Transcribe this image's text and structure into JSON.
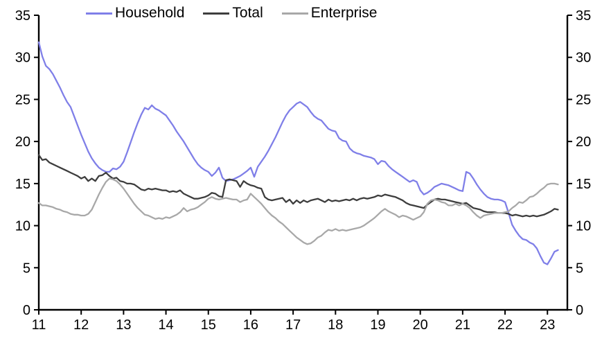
{
  "chart_data": {
    "type": "line",
    "legend_position": "top",
    "x_start_year": 2011,
    "x_step_months": 1,
    "xlim_years": [
      2011,
      2023.47
    ],
    "ylim": [
      0,
      35
    ],
    "y_ticks_left": [
      0,
      5,
      10,
      15,
      20,
      25,
      30,
      35
    ],
    "y_ticks_right": [
      0,
      5,
      10,
      15,
      20,
      25,
      30,
      35
    ],
    "x_ticks": [
      {
        "year": 2011,
        "label": "11"
      },
      {
        "year": 2012,
        "label": "12"
      },
      {
        "year": 2013,
        "label": "13"
      },
      {
        "year": 2014,
        "label": "14"
      },
      {
        "year": 2015,
        "label": "15"
      },
      {
        "year": 2016,
        "label": "16"
      },
      {
        "year": 2017,
        "label": "17"
      },
      {
        "year": 2018,
        "label": "18"
      },
      {
        "year": 2019,
        "label": "19"
      },
      {
        "year": 2020,
        "label": "20"
      },
      {
        "year": 2021,
        "label": "21"
      },
      {
        "year": 2022,
        "label": "22"
      },
      {
        "year": 2023,
        "label": "23"
      }
    ],
    "axis_color": "#000000",
    "grid": false,
    "series": [
      {
        "name": "Household",
        "color": "#7f7fe8",
        "values": [
          31.8,
          30.1,
          29.0,
          28.6,
          28.0,
          27.2,
          26.4,
          25.5,
          24.7,
          24.1,
          23.0,
          21.9,
          20.8,
          19.8,
          18.8,
          18.0,
          17.4,
          16.9,
          16.6,
          16.4,
          16.4,
          16.8,
          16.7,
          17.0,
          17.6,
          18.7,
          19.9,
          21.1,
          22.2,
          23.2,
          24.0,
          23.8,
          24.3,
          23.9,
          23.7,
          23.4,
          23.1,
          22.5,
          21.9,
          21.2,
          20.6,
          20.0,
          19.3,
          18.6,
          17.9,
          17.3,
          16.9,
          16.6,
          16.4,
          15.9,
          16.3,
          16.9,
          15.7,
          15.3,
          15.4,
          15.5,
          15.7,
          15.9,
          16.2,
          16.5,
          16.9,
          15.8,
          17.0,
          17.6,
          18.2,
          18.9,
          19.7,
          20.5,
          21.4,
          22.3,
          23.1,
          23.7,
          24.1,
          24.5,
          24.7,
          24.4,
          24.1,
          23.5,
          23.0,
          22.7,
          22.5,
          22.0,
          21.5,
          21.3,
          21.2,
          20.4,
          20.1,
          20.0,
          19.2,
          18.8,
          18.6,
          18.5,
          18.3,
          18.2,
          18.1,
          17.9,
          17.3,
          17.7,
          17.6,
          17.1,
          16.7,
          16.4,
          16.1,
          15.8,
          15.5,
          15.2,
          15.4,
          15.2,
          14.2,
          13.7,
          13.9,
          14.2,
          14.6,
          14.8,
          15.0,
          14.9,
          14.8,
          14.6,
          14.4,
          14.2,
          14.1,
          16.4,
          16.2,
          15.6,
          14.9,
          14.3,
          13.8,
          13.4,
          13.2,
          13.1,
          13.1,
          13.0,
          12.8,
          11.5,
          10.1,
          9.4,
          8.8,
          8.4,
          8.3,
          8.0,
          7.8,
          7.3,
          6.4,
          5.6,
          5.4,
          6.1,
          6.9,
          7.1
        ]
      },
      {
        "name": "Total",
        "color": "#3d3d3d",
        "values": [
          18.4,
          17.8,
          17.9,
          17.5,
          17.3,
          17.1,
          16.9,
          16.7,
          16.5,
          16.3,
          16.1,
          15.9,
          15.6,
          15.8,
          15.3,
          15.6,
          15.3,
          15.9,
          16.0,
          16.3,
          15.9,
          15.6,
          15.7,
          15.3,
          15.2,
          15.0,
          15.0,
          14.9,
          14.6,
          14.3,
          14.2,
          14.4,
          14.3,
          14.4,
          14.3,
          14.2,
          14.2,
          14.0,
          14.1,
          14.0,
          14.2,
          13.8,
          13.6,
          13.4,
          13.2,
          13.2,
          13.3,
          13.4,
          13.6,
          13.9,
          13.8,
          13.5,
          13.4,
          15.4,
          15.5,
          15.4,
          15.3,
          14.6,
          15.3,
          15.0,
          14.8,
          14.7,
          14.5,
          14.4,
          13.4,
          13.1,
          13.0,
          13.1,
          13.2,
          13.3,
          12.8,
          13.1,
          12.6,
          13.0,
          12.7,
          13.0,
          12.8,
          13.0,
          13.1,
          13.2,
          13.0,
          12.8,
          13.1,
          12.9,
          13.0,
          12.9,
          13.0,
          13.1,
          13.0,
          13.2,
          13.0,
          13.2,
          13.3,
          13.2,
          13.3,
          13.4,
          13.6,
          13.5,
          13.7,
          13.6,
          13.5,
          13.4,
          13.2,
          13.0,
          12.7,
          12.5,
          12.4,
          12.3,
          12.2,
          12.1,
          12.5,
          12.8,
          13.1,
          13.2,
          13.1,
          13.1,
          13.0,
          12.9,
          12.8,
          12.7,
          12.6,
          12.7,
          12.4,
          12.1,
          12.0,
          11.9,
          11.7,
          11.6,
          11.6,
          11.6,
          11.5,
          11.5,
          11.5,
          11.4,
          11.2,
          11.3,
          11.2,
          11.1,
          11.2,
          11.1,
          11.2,
          11.1,
          11.2,
          11.3,
          11.5,
          11.7,
          12.0,
          11.9
        ]
      },
      {
        "name": "Enterprise",
        "color": "#a8a8a8",
        "values": [
          12.7,
          12.4,
          12.4,
          12.3,
          12.2,
          12.0,
          11.9,
          11.7,
          11.6,
          11.4,
          11.3,
          11.3,
          11.2,
          11.2,
          11.4,
          11.9,
          12.8,
          13.7,
          14.5,
          15.2,
          15.6,
          15.5,
          15.3,
          14.9,
          14.4,
          13.8,
          13.2,
          12.6,
          12.1,
          11.7,
          11.3,
          11.2,
          11.0,
          10.8,
          10.9,
          10.8,
          11.0,
          10.9,
          11.1,
          11.3,
          11.6,
          12.1,
          11.7,
          11.9,
          12.0,
          12.2,
          12.5,
          12.8,
          13.2,
          13.4,
          13.2,
          13.1,
          13.2,
          13.3,
          13.2,
          13.1,
          13.1,
          12.8,
          13.0,
          13.1,
          13.8,
          13.4,
          13.0,
          12.6,
          12.1,
          11.6,
          11.2,
          10.9,
          10.5,
          10.2,
          9.8,
          9.4,
          9.0,
          8.6,
          8.3,
          8.0,
          7.8,
          7.9,
          8.2,
          8.6,
          8.8,
          9.2,
          9.5,
          9.4,
          9.6,
          9.4,
          9.5,
          9.4,
          9.5,
          9.6,
          9.7,
          9.8,
          10.0,
          10.3,
          10.6,
          10.9,
          11.3,
          11.7,
          12.0,
          11.7,
          11.5,
          11.3,
          11.0,
          11.2,
          11.1,
          10.9,
          10.7,
          10.9,
          11.1,
          11.6,
          12.6,
          13.0,
          13.1,
          13.0,
          12.8,
          12.7,
          12.4,
          12.4,
          12.6,
          12.4,
          12.6,
          12.4,
          12.1,
          11.6,
          11.2,
          10.9,
          11.2,
          11.3,
          11.4,
          11.5,
          11.5,
          11.5,
          11.6,
          11.7,
          12.1,
          12.4,
          12.8,
          12.7,
          13.0,
          13.4,
          13.5,
          13.8,
          14.2,
          14.5,
          14.9,
          15.0,
          15.0,
          14.9
        ]
      }
    ]
  },
  "legend": {
    "items": [
      {
        "label": "Household"
      },
      {
        "label": "Total"
      },
      {
        "label": "Enterprise"
      }
    ]
  }
}
